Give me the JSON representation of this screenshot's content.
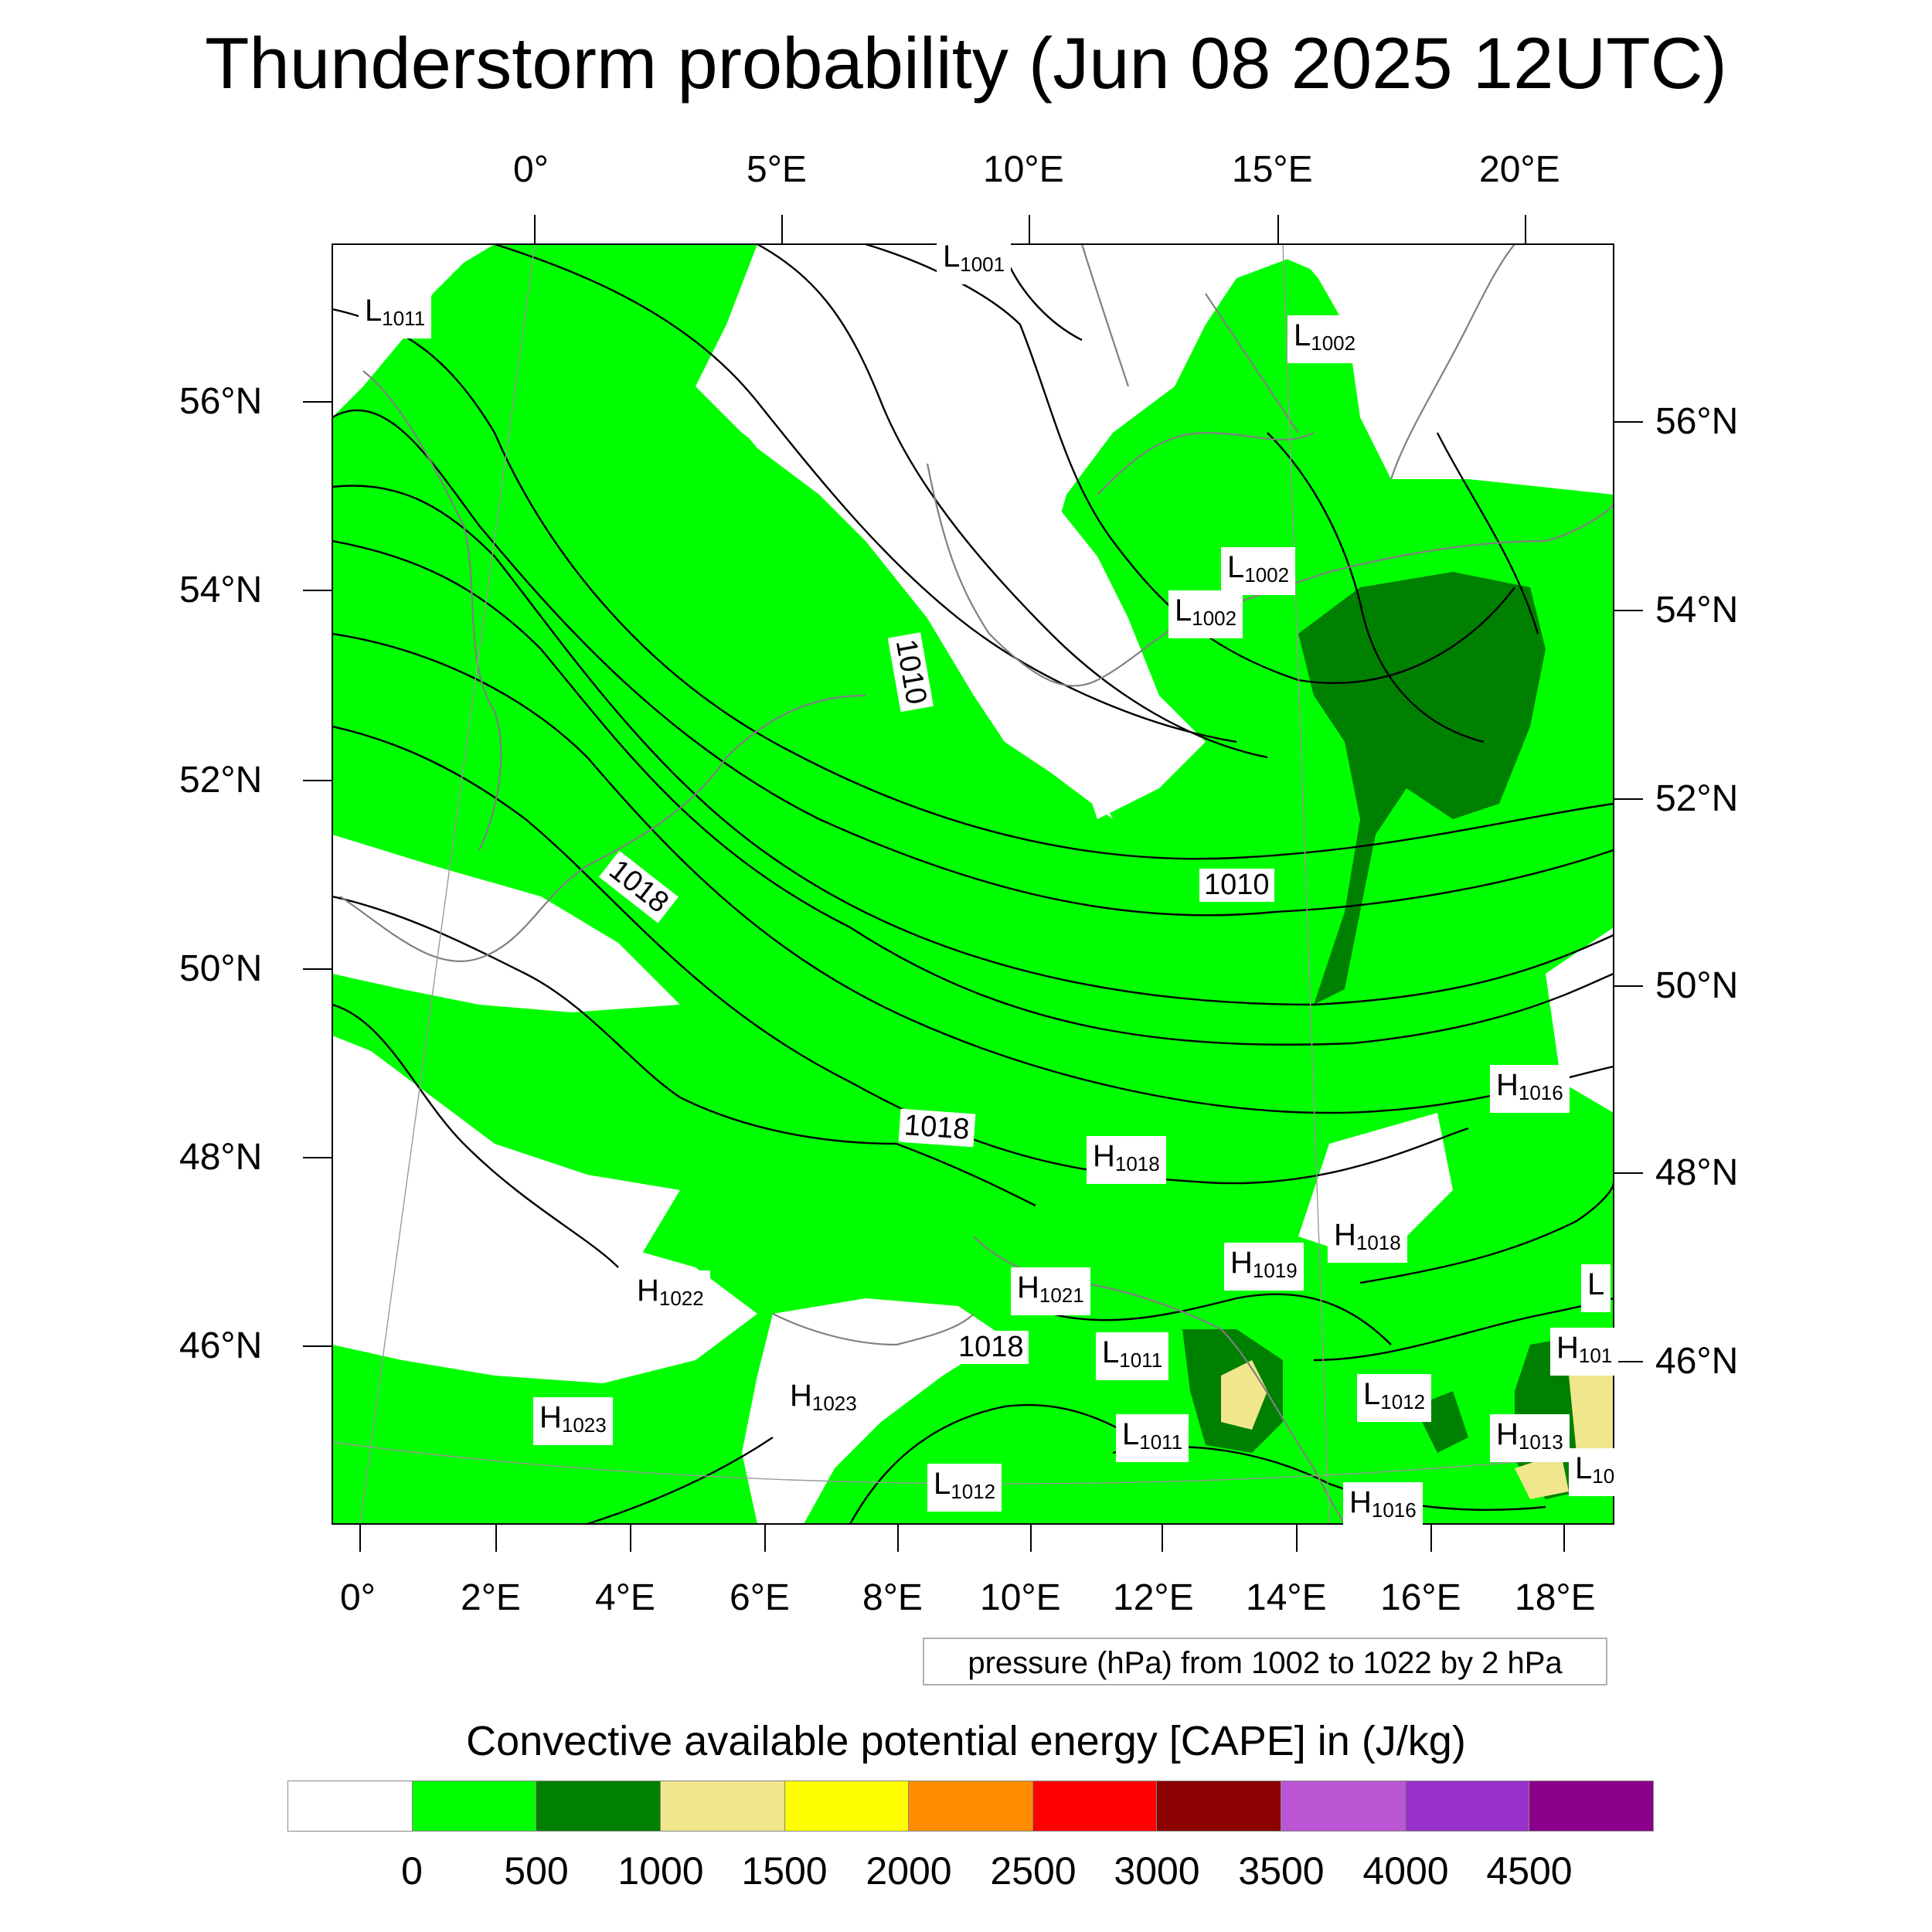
{
  "title": "Thunderstorm probability (Jun 08 2025 12UTC)",
  "top_axis": [
    "0°",
    "5°E",
    "10°E",
    "15°E",
    "20°E"
  ],
  "bottom_axis": [
    "0°",
    "2°E",
    "4°E",
    "6°E",
    "8°E",
    "10°E",
    "12°E",
    "14°E",
    "16°E",
    "18°E"
  ],
  "left_axis": [
    "56°N",
    "54°N",
    "52°N",
    "50°N",
    "48°N",
    "46°N"
  ],
  "right_axis": [
    "56°N",
    "54°N",
    "52°N",
    "50°N",
    "48°N",
    "46°N"
  ],
  "contour_info": "pressure (hPa) from 1002 to 1022 by 2 hPa",
  "legend": {
    "title": "Convective available potential energy [CAPE] in (J/kg)",
    "colors": [
      "#ffffff",
      "#00ff00",
      "#008000",
      "#f0e68c",
      "#ffff00",
      "#ff8c00",
      "#ff0000",
      "#8b0000",
      "#ba55d3",
      "#9932cc",
      "#8b008b"
    ],
    "ticks": [
      "0",
      "500",
      "1000",
      "1500",
      "2000",
      "2500",
      "3000",
      "3500",
      "4000",
      "4500"
    ]
  },
  "pressure_centers": [
    {
      "type": "L",
      "value": "1001"
    },
    {
      "type": "L",
      "value": "1011"
    },
    {
      "type": "L",
      "value": "1002"
    },
    {
      "type": "L",
      "value": "1002"
    },
    {
      "type": "L",
      "value": "1002"
    },
    {
      "type": "H",
      "value": "1016"
    },
    {
      "type": "H",
      "value": "1018"
    },
    {
      "type": "H",
      "value": "1018"
    },
    {
      "type": "H",
      "value": "1019"
    },
    {
      "type": "H",
      "value": "1021"
    },
    {
      "type": "H",
      "value": "1022"
    },
    {
      "type": "L",
      "value": "1011"
    },
    {
      "type": "H",
      "value": "1023"
    },
    {
      "type": "H",
      "value": "1023"
    },
    {
      "type": "L",
      "value": "1012"
    },
    {
      "type": "L",
      "value": "1011"
    },
    {
      "type": "H",
      "value": "1013"
    },
    {
      "type": "L",
      "value": "1012"
    },
    {
      "type": "H",
      "value": "1016"
    },
    {
      "type": "H",
      "value": "101"
    },
    {
      "type": "L",
      "value": "10"
    },
    {
      "type": "L",
      "value": ""
    }
  ],
  "isobar_labels": [
    "1010",
    "1018",
    "1010",
    "1018",
    "1018"
  ]
}
